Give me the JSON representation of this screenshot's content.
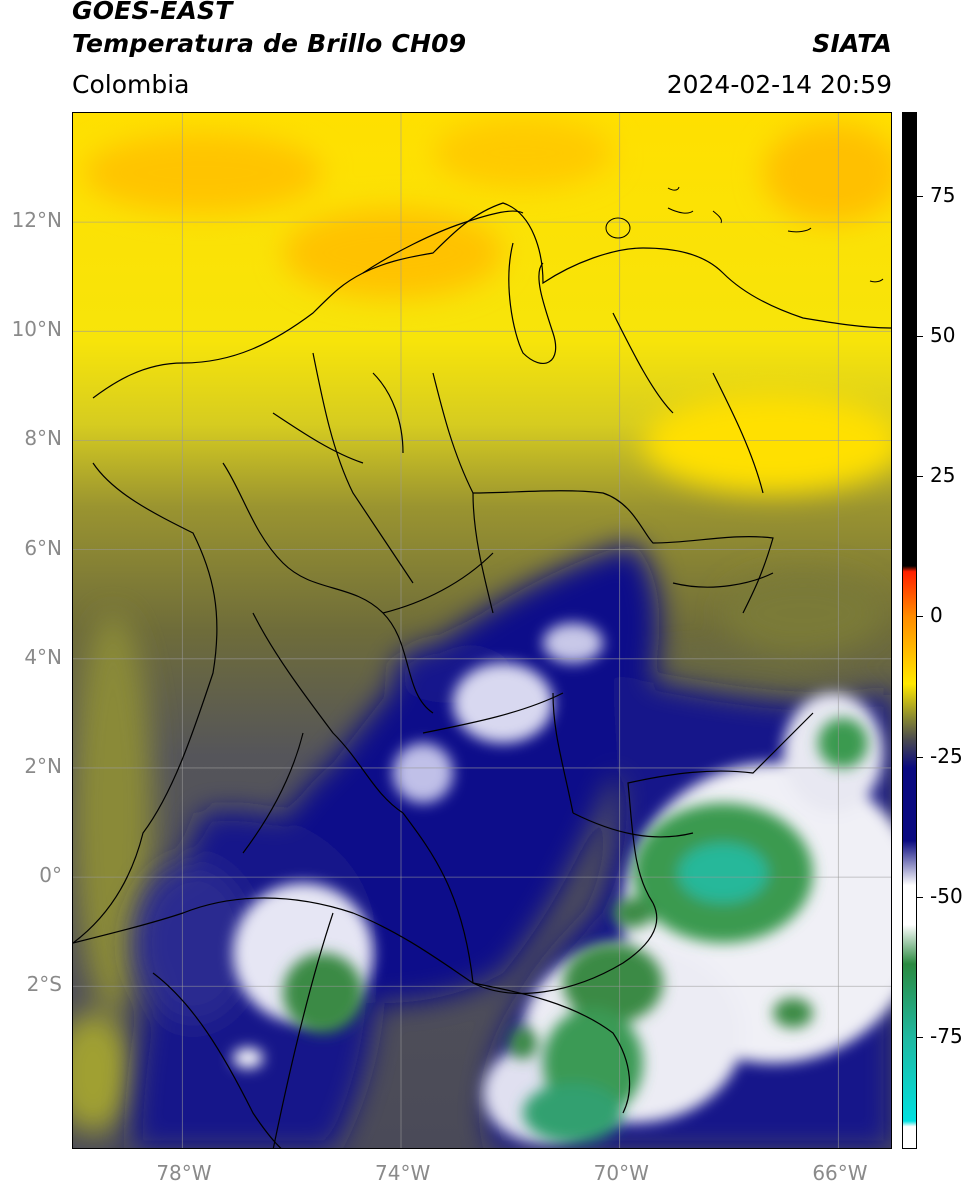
{
  "header": {
    "title_line1": "GOES-EAST",
    "title_line2": "Temperatura de Brillo CH09",
    "region": "Colombia",
    "source": "SIATA",
    "datetime": "2024-02-14 20:59"
  },
  "map": {
    "lon_range": [
      -80,
      -65
    ],
    "lat_range": [
      -5,
      14
    ],
    "lon_ticks": [
      {
        "value": -78,
        "label": "78°W"
      },
      {
        "value": -74,
        "label": "74°W"
      },
      {
        "value": -70,
        "label": "70°W"
      },
      {
        "value": -66,
        "label": "66°W"
      }
    ],
    "lat_ticks": [
      {
        "value": 12,
        "label": "12°N"
      },
      {
        "value": 10,
        "label": "10°N"
      },
      {
        "value": 8,
        "label": "8°N"
      },
      {
        "value": 6,
        "label": "6°N"
      },
      {
        "value": 4,
        "label": "4°N"
      },
      {
        "value": 2,
        "label": "2°N"
      },
      {
        "value": 0,
        "label": "0°"
      },
      {
        "value": -2,
        "label": "2°S"
      }
    ],
    "grid": true,
    "colorbar": {
      "range": [
        -95,
        90
      ],
      "ticks": [
        {
          "value": 75,
          "label": "75"
        },
        {
          "value": 50,
          "label": "50"
        },
        {
          "value": 25,
          "label": "25"
        },
        {
          "value": 0,
          "label": "0"
        },
        {
          "value": -25,
          "label": "-25"
        },
        {
          "value": -50,
          "label": "-50"
        },
        {
          "value": -75,
          "label": "-75"
        }
      ],
      "colors": {
        "black": "#000000",
        "red": "#ff2000",
        "orange": "#ff8c00",
        "yellow": "#ffe800",
        "olive": "#8a8a30",
        "gray": "#4a4a50",
        "navy": "#0a0a80",
        "white": "#ffffff",
        "green": "#2a8a40",
        "teal": "#20b8a0",
        "cyan": "#00e0e0"
      }
    }
  }
}
